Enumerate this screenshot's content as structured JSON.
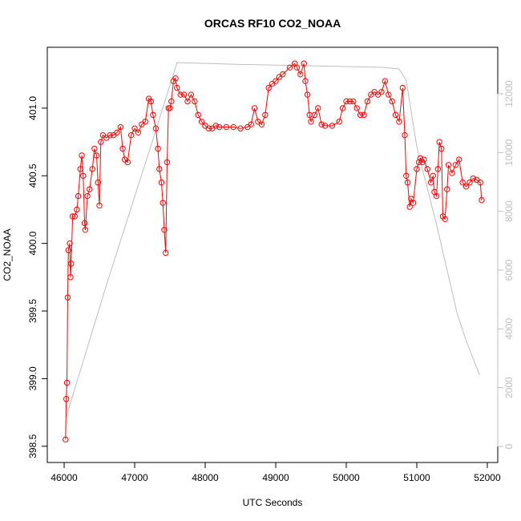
{
  "chart_data": {
    "type": "scatter",
    "title": "ORCAS RF10 CO2_NOAA",
    "x_label": "UTC Seconds",
    "y_label": "CO2_NOAA",
    "xlim": [
      45761,
      52148
    ],
    "ylim": [
      398.38,
      401.45
    ],
    "y2lim": [
      -545,
      13582
    ],
    "xticks": [
      46000,
      47000,
      48000,
      49000,
      50000,
      51000,
      52000
    ],
    "yticks": [
      398.5,
      {
        "value": 399,
        "label": "399.0"
      },
      399.5,
      {
        "value": 400,
        "label": "400.0"
      },
      400.5,
      {
        "value": 401,
        "label": "401.0"
      }
    ],
    "y2ticks": [
      0,
      2000,
      4000,
      6000,
      8000,
      10000,
      12000
    ],
    "y2_color": "#bebebe",
    "series": [
      {
        "color": "#ff0000",
        "x": [
          46020,
          46030,
          46040,
          46050,
          46060,
          46080,
          46090,
          46100,
          46120,
          46150,
          46180,
          46200,
          46230,
          46250,
          46270,
          46290,
          46300,
          46330,
          46360,
          46400,
          46430,
          46460,
          46480,
          46500,
          46520,
          46550,
          46600,
          46650,
          46700,
          46750,
          46800,
          46830,
          46860,
          46900,
          46950,
          47000,
          47050,
          47100,
          47150,
          47200,
          47230,
          47260,
          47300,
          47330,
          47350,
          47380,
          47400,
          47420,
          47440,
          47460,
          47480,
          47500,
          47520,
          47550,
          47580,
          47600,
          47650,
          47700,
          47750,
          47800,
          47850,
          47900,
          47950,
          48000,
          48050,
          48100,
          48150,
          48200,
          48300,
          48400,
          48500,
          48600,
          48650,
          48700,
          48750,
          48800,
          48850,
          48900,
          48950,
          49000,
          49050,
          49100,
          49200,
          49270,
          49300,
          49350,
          49400,
          49420,
          49450,
          49480,
          49500,
          49550,
          49600,
          49650,
          49700,
          49800,
          49900,
          49950,
          50000,
          50050,
          50100,
          50150,
          50200,
          50250,
          50300,
          50350,
          50400,
          50450,
          50500,
          50550,
          50600,
          50650,
          50700,
          50750,
          50800,
          50830,
          50850,
          50870,
          50900,
          50920,
          50950,
          51000,
          51030,
          51050,
          51080,
          51100,
          51150,
          51200,
          51230,
          51250,
          51280,
          51300,
          51320,
          51350,
          51370,
          51400,
          51430,
          51450,
          51500,
          51550,
          51600,
          51650,
          51700,
          51750,
          51800,
          51850,
          51900,
          51920
        ],
        "values": [
          398.55,
          398.85,
          398.97,
          399.6,
          399.95,
          400.0,
          399.75,
          399.85,
          400.2,
          400.2,
          400.25,
          400.35,
          400.55,
          400.65,
          400.5,
          400.15,
          400.1,
          400.35,
          400.4,
          400.55,
          400.7,
          400.65,
          400.45,
          400.28,
          400.75,
          400.8,
          400.78,
          400.8,
          400.8,
          400.82,
          400.86,
          400.7,
          400.62,
          400.6,
          400.8,
          400.85,
          400.82,
          400.88,
          400.9,
          401.07,
          401.05,
          400.95,
          400.85,
          400.7,
          400.55,
          400.45,
          400.3,
          400.1,
          399.93,
          400.6,
          401.0,
          401.0,
          401.05,
          401.2,
          401.22,
          401.15,
          401.1,
          401.1,
          401.05,
          401.1,
          401.05,
          400.95,
          400.9,
          400.87,
          400.85,
          400.85,
          400.87,
          400.86,
          400.86,
          400.86,
          400.85,
          400.86,
          400.88,
          401.0,
          400.9,
          400.88,
          400.95,
          401.15,
          401.18,
          401.2,
          401.23,
          401.25,
          401.3,
          401.33,
          401.3,
          401.25,
          401.33,
          401.2,
          401.1,
          400.95,
          400.9,
          400.95,
          401.0,
          400.88,
          400.87,
          400.87,
          400.9,
          401.0,
          401.05,
          401.05,
          401.05,
          401.0,
          400.95,
          400.95,
          401.05,
          401.1,
          401.12,
          401.1,
          401.12,
          401.2,
          401.1,
          401.05,
          400.95,
          400.9,
          401.15,
          400.8,
          400.5,
          400.45,
          400.27,
          400.33,
          400.3,
          400.55,
          400.6,
          400.63,
          400.6,
          400.62,
          400.55,
          400.45,
          400.5,
          400.38,
          400.35,
          400.55,
          400.75,
          400.7,
          400.2,
          400.18,
          400.4,
          400.58,
          400.52,
          400.58,
          400.62,
          400.45,
          400.42,
          400.45,
          400.48,
          400.47,
          400.45,
          400.32
        ]
      },
      {
        "color": "#bebebe",
        "axis": "y2",
        "x": [
          46030,
          46600,
          47200,
          47600,
          48500,
          49500,
          50500,
          50750,
          50850,
          51000,
          51280,
          51570,
          51700,
          51890
        ],
        "values": [
          1009,
          5500,
          10000,
          13060,
          13000,
          12950,
          12900,
          12845,
          12460,
          10200,
          7550,
          4550,
          3600,
          2430
        ]
      }
    ]
  }
}
